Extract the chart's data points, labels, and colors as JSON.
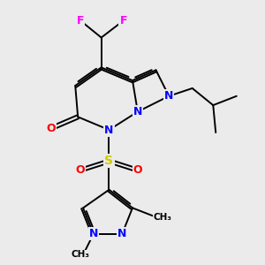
{
  "background_color": "#ebebeb",
  "figsize": [
    3.0,
    3.0
  ],
  "dpi": 100,
  "atom_colors": {
    "F": "#ff00ff",
    "N": "#0000ff",
    "O": "#ff0000",
    "S": "#cccc00",
    "C": "#000000"
  },
  "bond_color": "#000000",
  "bond_width": 1.4,
  "font_size_hetero": 9,
  "font_size_methyl": 7.5
}
